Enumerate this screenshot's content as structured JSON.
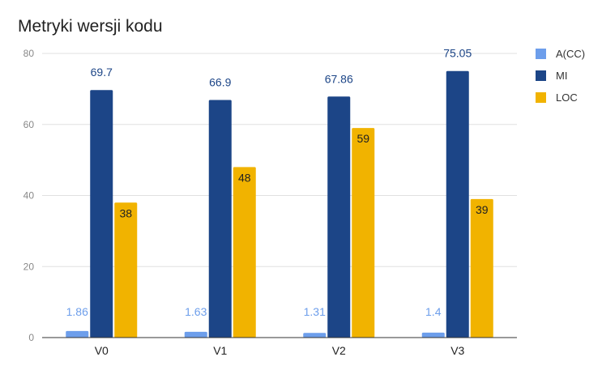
{
  "chart_data": {
    "type": "bar",
    "title": "Metryki wersji kodu",
    "xlabel": "",
    "ylabel": "",
    "categories": [
      "V0",
      "V1",
      "V2",
      "V3"
    ],
    "ylim": [
      0,
      80
    ],
    "yticks": [
      0,
      20,
      40,
      60,
      80
    ],
    "grid": true,
    "legend_position": "right",
    "series": [
      {
        "name": "A(CC)",
        "color": "#6d9eeb",
        "label_color": "#6d9eeb",
        "values": [
          1.86,
          1.63,
          1.31,
          1.4
        ],
        "labels": [
          "1.86",
          "1.63",
          "1.31",
          "1.4"
        ]
      },
      {
        "name": "MI",
        "color": "#1c4587",
        "label_color": "#1c4587",
        "values": [
          69.7,
          66.9,
          67.86,
          75.05
        ],
        "labels": [
          "69.7",
          "66.9",
          "67.86",
          "75.05"
        ]
      },
      {
        "name": "LOC",
        "color": "#f1b300",
        "label_color": "#222222",
        "values": [
          38,
          48,
          59,
          39
        ],
        "labels": [
          "38",
          "48",
          "59",
          "39"
        ]
      }
    ]
  }
}
